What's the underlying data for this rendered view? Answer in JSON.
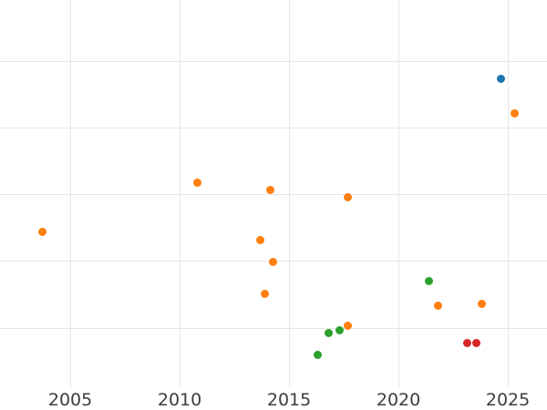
{
  "chart_data": {
    "type": "scatter",
    "title": "",
    "xlabel": "",
    "ylabel": "",
    "xlim": [
      2001.79,
      2026.79
    ],
    "ylim": [
      0.11,
      5.93
    ],
    "x_ticks": [
      2005,
      2010,
      2015,
      2020,
      2025
    ],
    "y_gridlines": [
      1,
      2,
      3,
      4,
      5
    ],
    "grid": true,
    "legend_position": "none",
    "background_color": "#ffffff",
    "gridline_color": "#e6e6e6",
    "tick_label_color": "#3d3d3d",
    "marker_diameter_px": 9,
    "series_colors": {
      "blue": "#1f77b4",
      "orange": "#ff7f0e",
      "green": "#2ca02c",
      "red": "#d62728"
    },
    "points": [
      {
        "x": 2003.71,
        "y": 2.45,
        "series": "orange"
      },
      {
        "x": 2010.79,
        "y": 3.18,
        "series": "orange"
      },
      {
        "x": 2013.67,
        "y": 2.32,
        "series": "orange"
      },
      {
        "x": 2013.88,
        "y": 1.51,
        "series": "orange"
      },
      {
        "x": 2014.13,
        "y": 3.07,
        "series": "orange"
      },
      {
        "x": 2014.25,
        "y": 1.99,
        "series": "orange"
      },
      {
        "x": 2016.29,
        "y": 0.59,
        "series": "green"
      },
      {
        "x": 2016.79,
        "y": 0.93,
        "series": "green"
      },
      {
        "x": 2017.33,
        "y": 0.96,
        "series": "green"
      },
      {
        "x": 2017.67,
        "y": 1.03,
        "series": "orange"
      },
      {
        "x": 2017.67,
        "y": 2.96,
        "series": "orange"
      },
      {
        "x": 2021.38,
        "y": 1.71,
        "series": "green"
      },
      {
        "x": 2021.83,
        "y": 1.34,
        "series": "orange"
      },
      {
        "x": 2023.13,
        "y": 0.77,
        "series": "red"
      },
      {
        "x": 2023.58,
        "y": 0.77,
        "series": "red"
      },
      {
        "x": 2023.83,
        "y": 1.36,
        "series": "orange"
      },
      {
        "x": 2024.67,
        "y": 4.75,
        "series": "blue"
      },
      {
        "x": 2025.29,
        "y": 4.22,
        "series": "orange"
      }
    ]
  }
}
